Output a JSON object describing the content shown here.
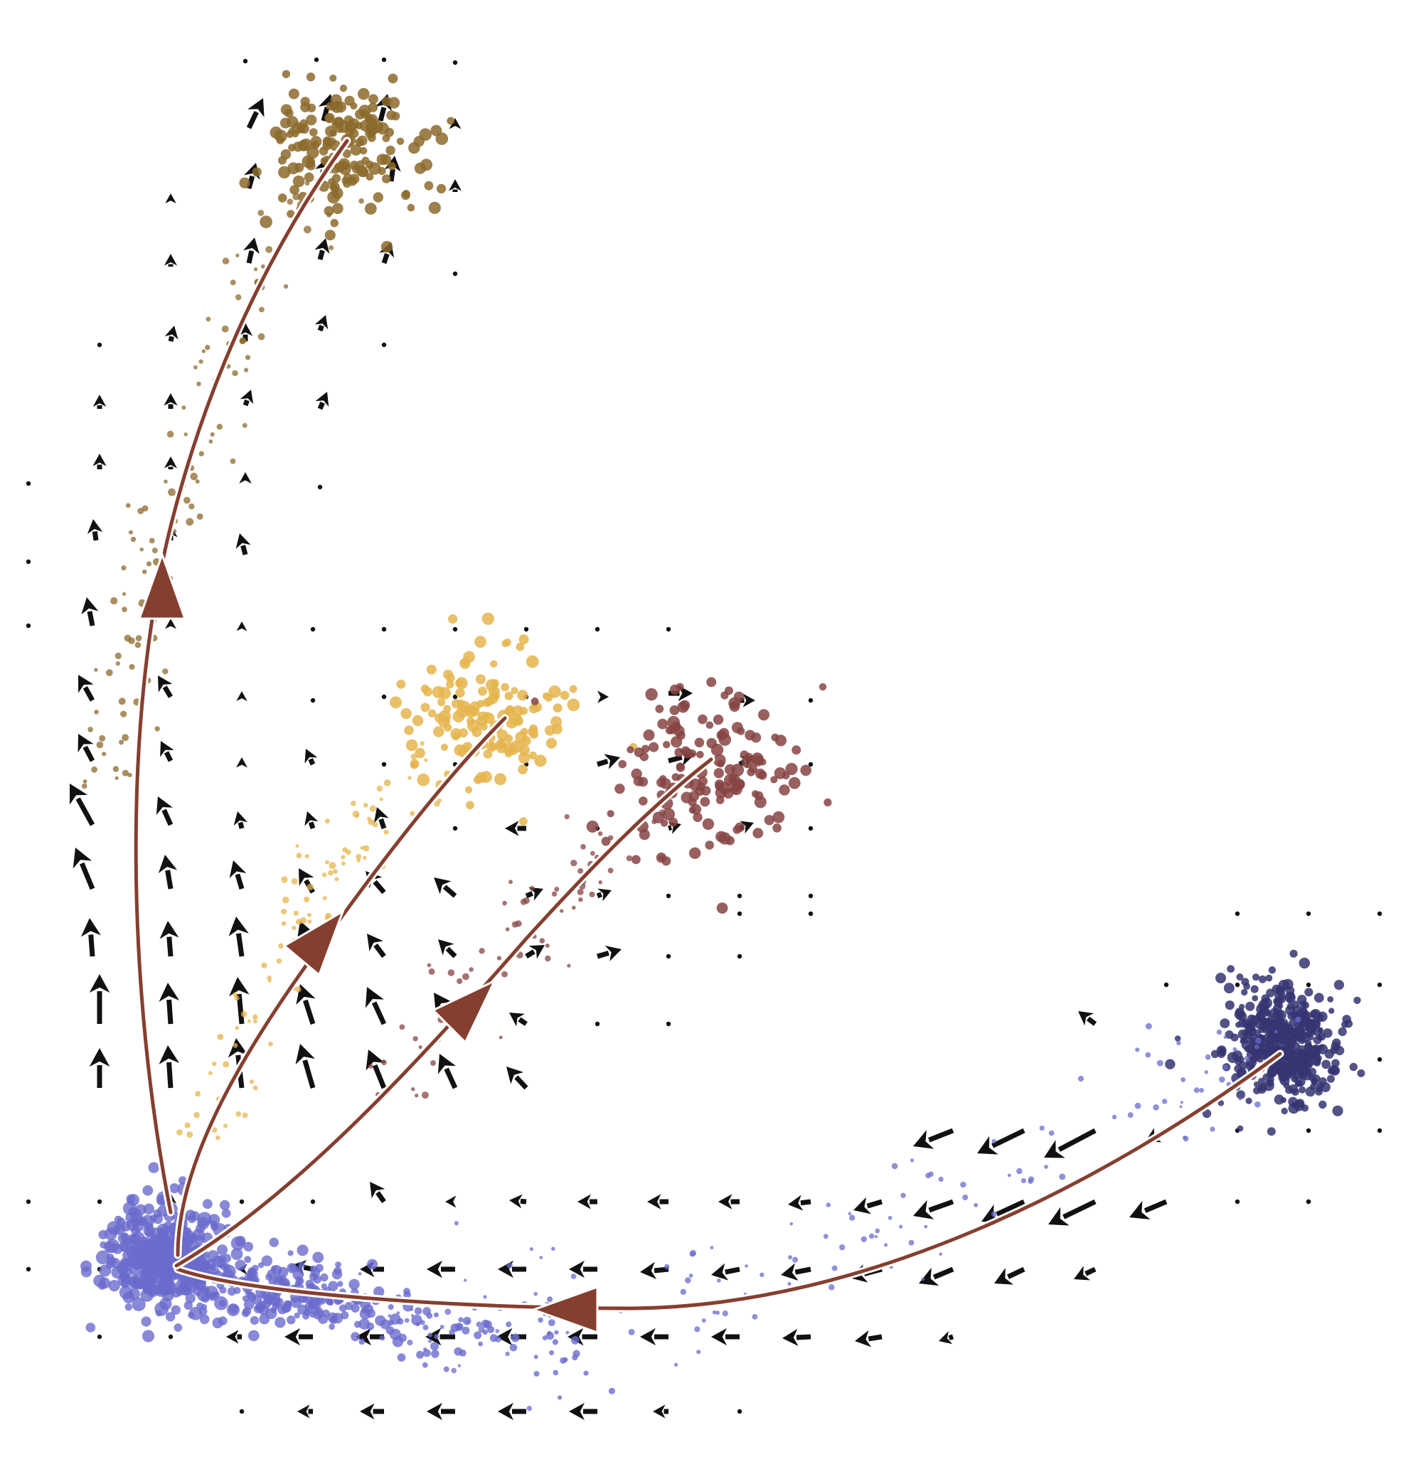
{
  "colors": {
    "cluster_root": "#6a6ccd",
    "cluster_source": "#363572",
    "cluster_top": "#8c6a2c",
    "cluster_mid": "#e5b54d",
    "cluster_right": "#864443",
    "trajectory": "#853f2f",
    "trajectory_halo": "#ffffff",
    "arrow": "#111111"
  },
  "clusters": [
    {
      "id": "root",
      "color_key": "cluster_root"
    },
    {
      "id": "source",
      "color_key": "cluster_source"
    },
    {
      "id": "top",
      "color_key": "cluster_top"
    },
    {
      "id": "mid",
      "color_key": "cluster_mid"
    },
    {
      "id": "right",
      "color_key": "cluster_right"
    }
  ],
  "trajectories": [
    {
      "id": "source-to-root"
    },
    {
      "id": "root-to-top"
    },
    {
      "id": "root-to-mid"
    },
    {
      "id": "root-to-right"
    }
  ],
  "arrow_icon": "velocity-arrow-icon"
}
